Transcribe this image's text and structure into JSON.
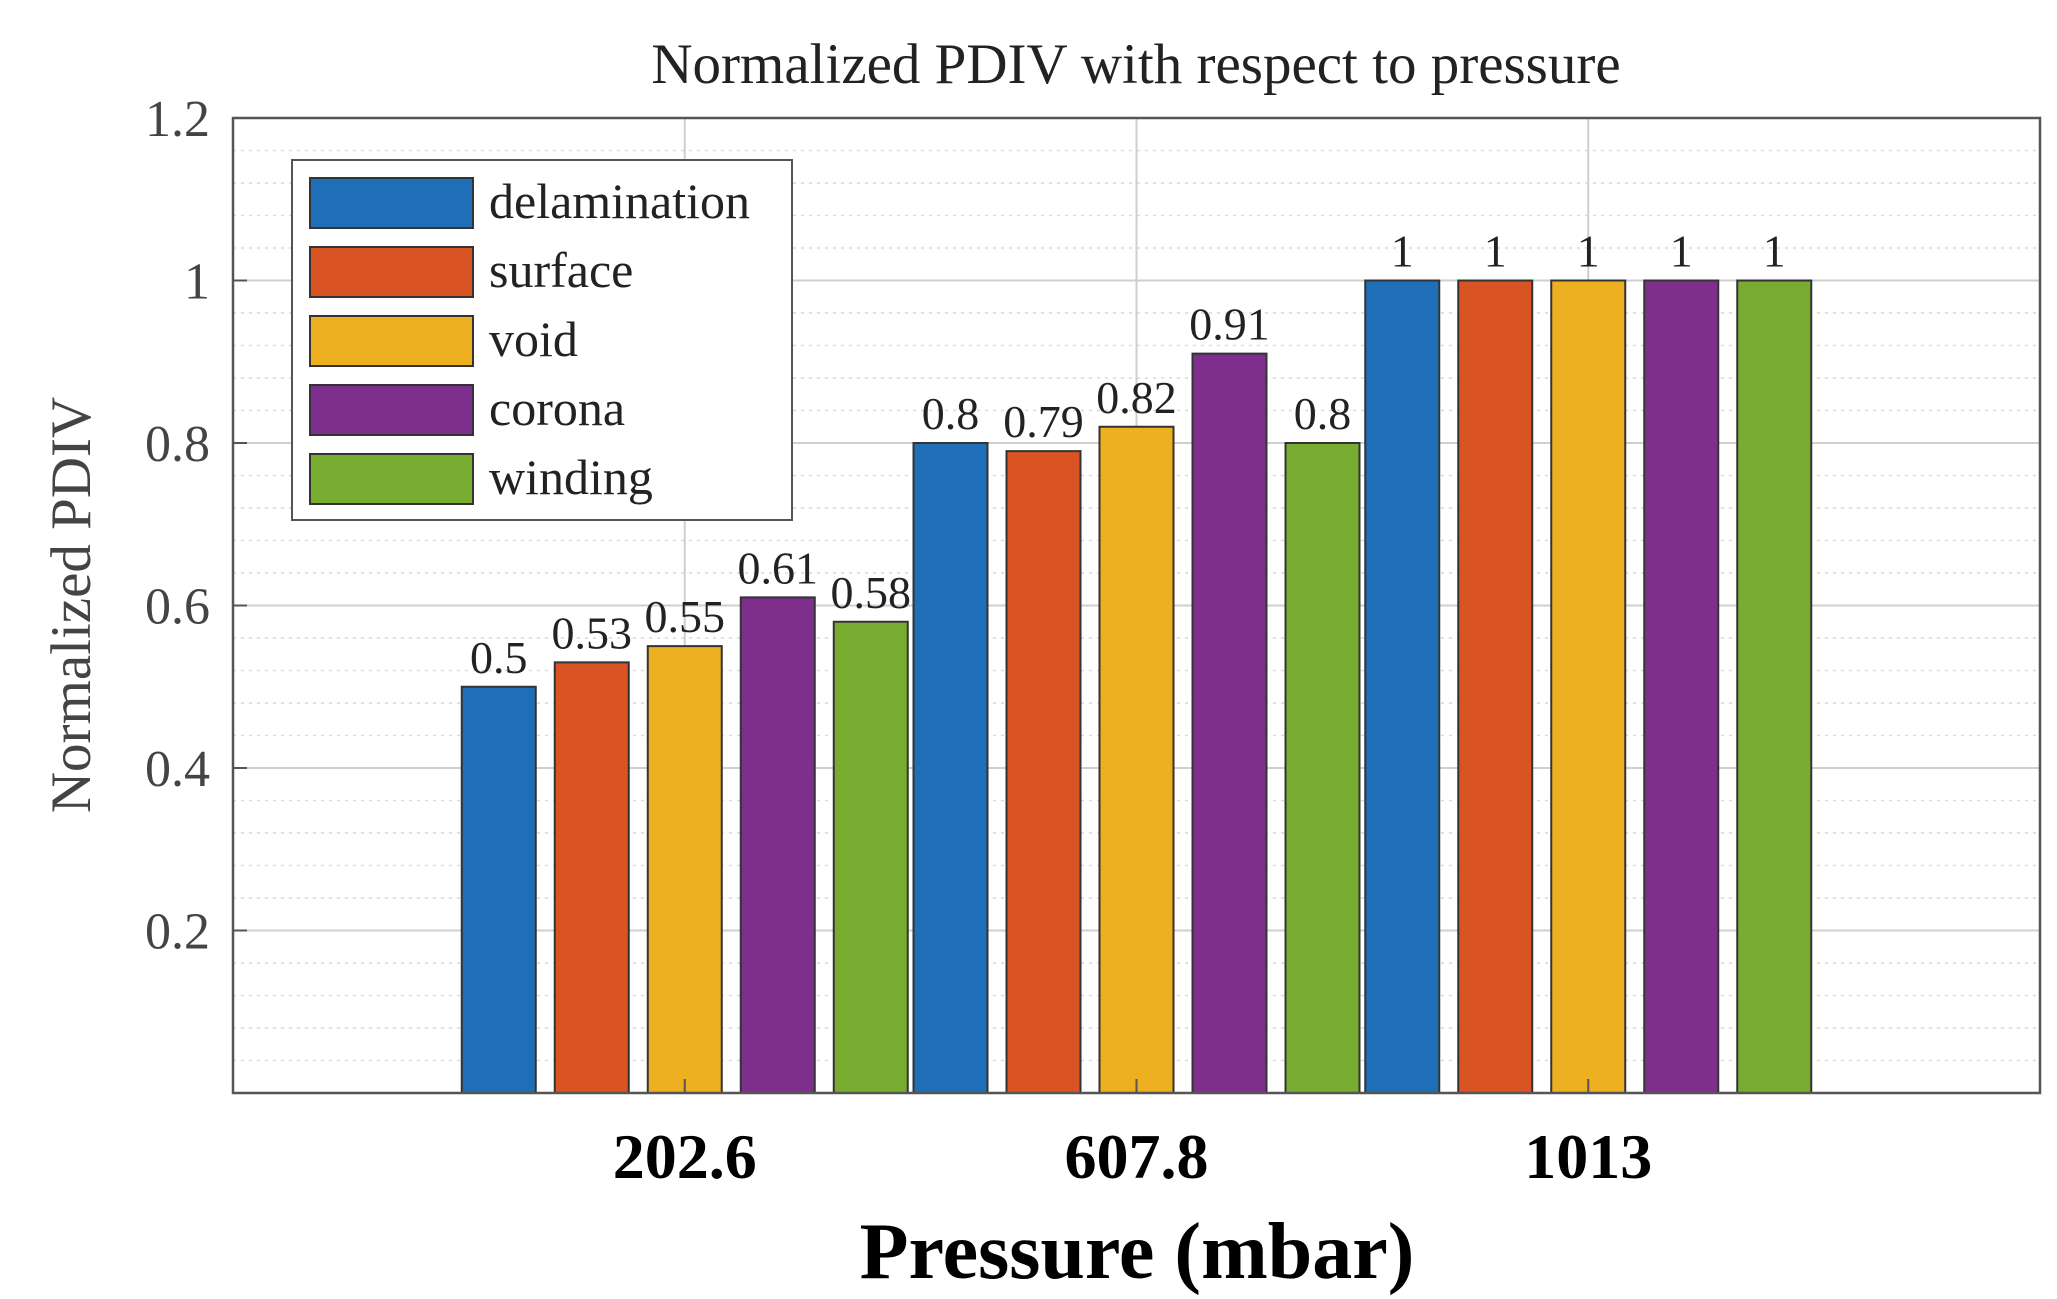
{
  "chart_data": {
    "type": "bar",
    "title": "Normalized PDIV with respect to pressure",
    "xlabel": "Pressure (mbar)",
    "ylabel": "Normalized PDIV",
    "categories": [
      "202.6",
      "607.8",
      "1013"
    ],
    "ylim": [
      0,
      1.2
    ],
    "yticks": [
      0.2,
      0.4,
      0.6,
      0.8,
      1,
      1.2
    ],
    "ytick_labels": [
      "0.2",
      "0.4",
      "0.6",
      "0.8",
      "1",
      "1.2"
    ],
    "grid": true,
    "minor_grid": true,
    "legend_position": "top-left",
    "series": [
      {
        "name": "delamination",
        "color": "#1f6fb8",
        "values": [
          0.5,
          0.8,
          1
        ],
        "labels": [
          "0.5",
          "0.8",
          "1"
        ]
      },
      {
        "name": "surface",
        "color": "#d95323",
        "values": [
          0.53,
          0.79,
          1
        ],
        "labels": [
          "0.53",
          "0.79",
          "1"
        ]
      },
      {
        "name": "void",
        "color": "#edb020",
        "values": [
          0.55,
          0.82,
          1
        ],
        "labels": [
          "0.55",
          "0.82",
          "1"
        ]
      },
      {
        "name": "corona",
        "color": "#7e2f8e",
        "values": [
          0.61,
          0.91,
          1
        ],
        "labels": [
          "0.61",
          "0.91",
          "1"
        ]
      },
      {
        "name": "winding",
        "color": "#77ac30",
        "values": [
          0.58,
          0.8,
          1
        ],
        "labels": [
          "0.58",
          "0.8",
          "1"
        ]
      }
    ]
  }
}
